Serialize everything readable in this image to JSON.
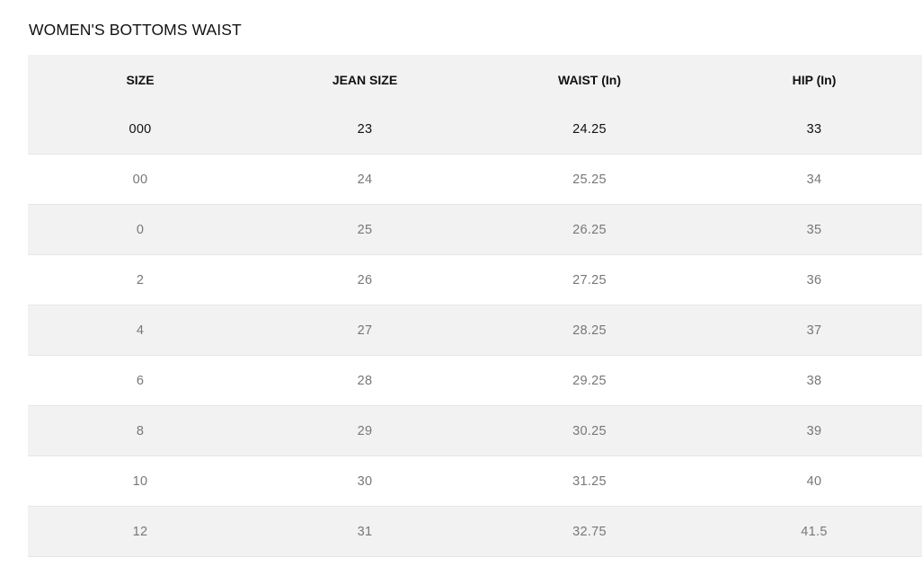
{
  "title": "WOMEN'S BOTTOMS WAIST",
  "table": {
    "headers": [
      "SIZE",
      "JEAN SIZE",
      "WAIST (In)",
      "HIP (In)"
    ],
    "rows": [
      [
        "000",
        "23",
        "24.25",
        "33"
      ],
      [
        "00",
        "24",
        "25.25",
        "34"
      ],
      [
        "0",
        "25",
        "26.25",
        "35"
      ],
      [
        "2",
        "26",
        "27.25",
        "36"
      ],
      [
        "4",
        "27",
        "28.25",
        "37"
      ],
      [
        "6",
        "28",
        "29.25",
        "38"
      ],
      [
        "8",
        "29",
        "30.25",
        "39"
      ],
      [
        "10",
        "30",
        "31.25",
        "40"
      ],
      [
        "12",
        "31",
        "32.75",
        "41.5"
      ]
    ]
  }
}
